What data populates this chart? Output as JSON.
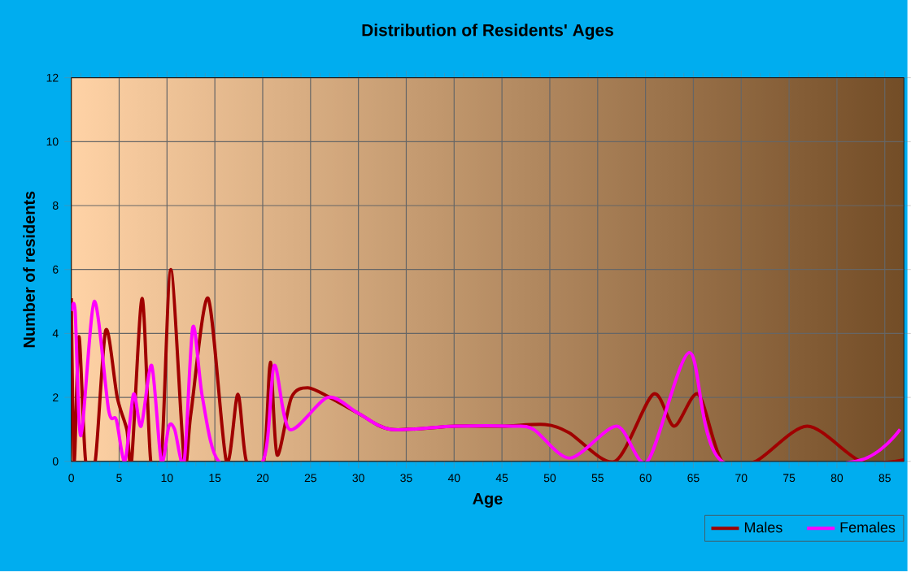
{
  "chart_data": {
    "type": "line",
    "title": "Distribution of Residents' Ages",
    "xlabel": "Age",
    "ylabel": "Number of residents",
    "xlim": [
      0,
      87
    ],
    "ylim": [
      0,
      12
    ],
    "xticks": [
      0,
      5,
      10,
      15,
      20,
      25,
      30,
      35,
      40,
      45,
      50,
      55,
      60,
      65,
      70,
      75,
      80,
      85
    ],
    "yticks": [
      0,
      2,
      4,
      6,
      8,
      10,
      12
    ],
    "grid": true,
    "legend": "bottom right",
    "line_style": "solid",
    "marker": "none",
    "series": [
      {
        "name": "Males",
        "color": "#a00000",
        "x": [
          0,
          0.3,
          0.8,
          1.5,
          2.5,
          3.6,
          4.8,
          5.8,
          6.3,
          7.4,
          8.3,
          9.4,
          10.4,
          11.8,
          12.5,
          14.3,
          16.2,
          17.4,
          18.3,
          20.1,
          20.8,
          21.5,
          23,
          24.7,
          27,
          30,
          33.4,
          40,
          45,
          49.5,
          52,
          56.8,
          60.8,
          63,
          65.5,
          68,
          71.5,
          76.9,
          82.5,
          87
        ],
        "values": [
          5.1,
          0,
          3.9,
          0,
          0,
          4.1,
          2,
          1,
          0,
          5.1,
          0,
          0,
          6,
          0,
          1.5,
          5.1,
          0,
          2.1,
          0,
          0,
          3.1,
          0.2,
          2,
          2.3,
          2,
          1.5,
          1,
          1.1,
          1.1,
          1.15,
          0.9,
          0,
          2.1,
          1.1,
          2.1,
          0,
          0,
          1.1,
          0,
          0.05
        ]
      },
      {
        "name": "Females",
        "color": "#ff00ff",
        "x": [
          0,
          0.4,
          1,
          2.4,
          3.9,
          4.7,
          5.6,
          6.5,
          7.3,
          8.4,
          9.4,
          10.2,
          10.8,
          11.8,
          12.7,
          13.7,
          15.4,
          20,
          21.2,
          22.8,
          26.8,
          30,
          33.4,
          40,
          46,
          48.3,
          52.1,
          57,
          60.2,
          64.6,
          68,
          82,
          86.6
        ],
        "values": [
          4.7,
          4.7,
          0.8,
          5,
          1.6,
          1.3,
          0,
          2.1,
          1.1,
          3,
          0,
          1.1,
          1,
          0,
          4.2,
          2,
          0,
          0,
          3,
          1,
          2,
          1.5,
          1,
          1.1,
          1.1,
          1,
          0.1,
          1.1,
          0,
          3.4,
          0,
          0,
          1
        ]
      }
    ]
  }
}
